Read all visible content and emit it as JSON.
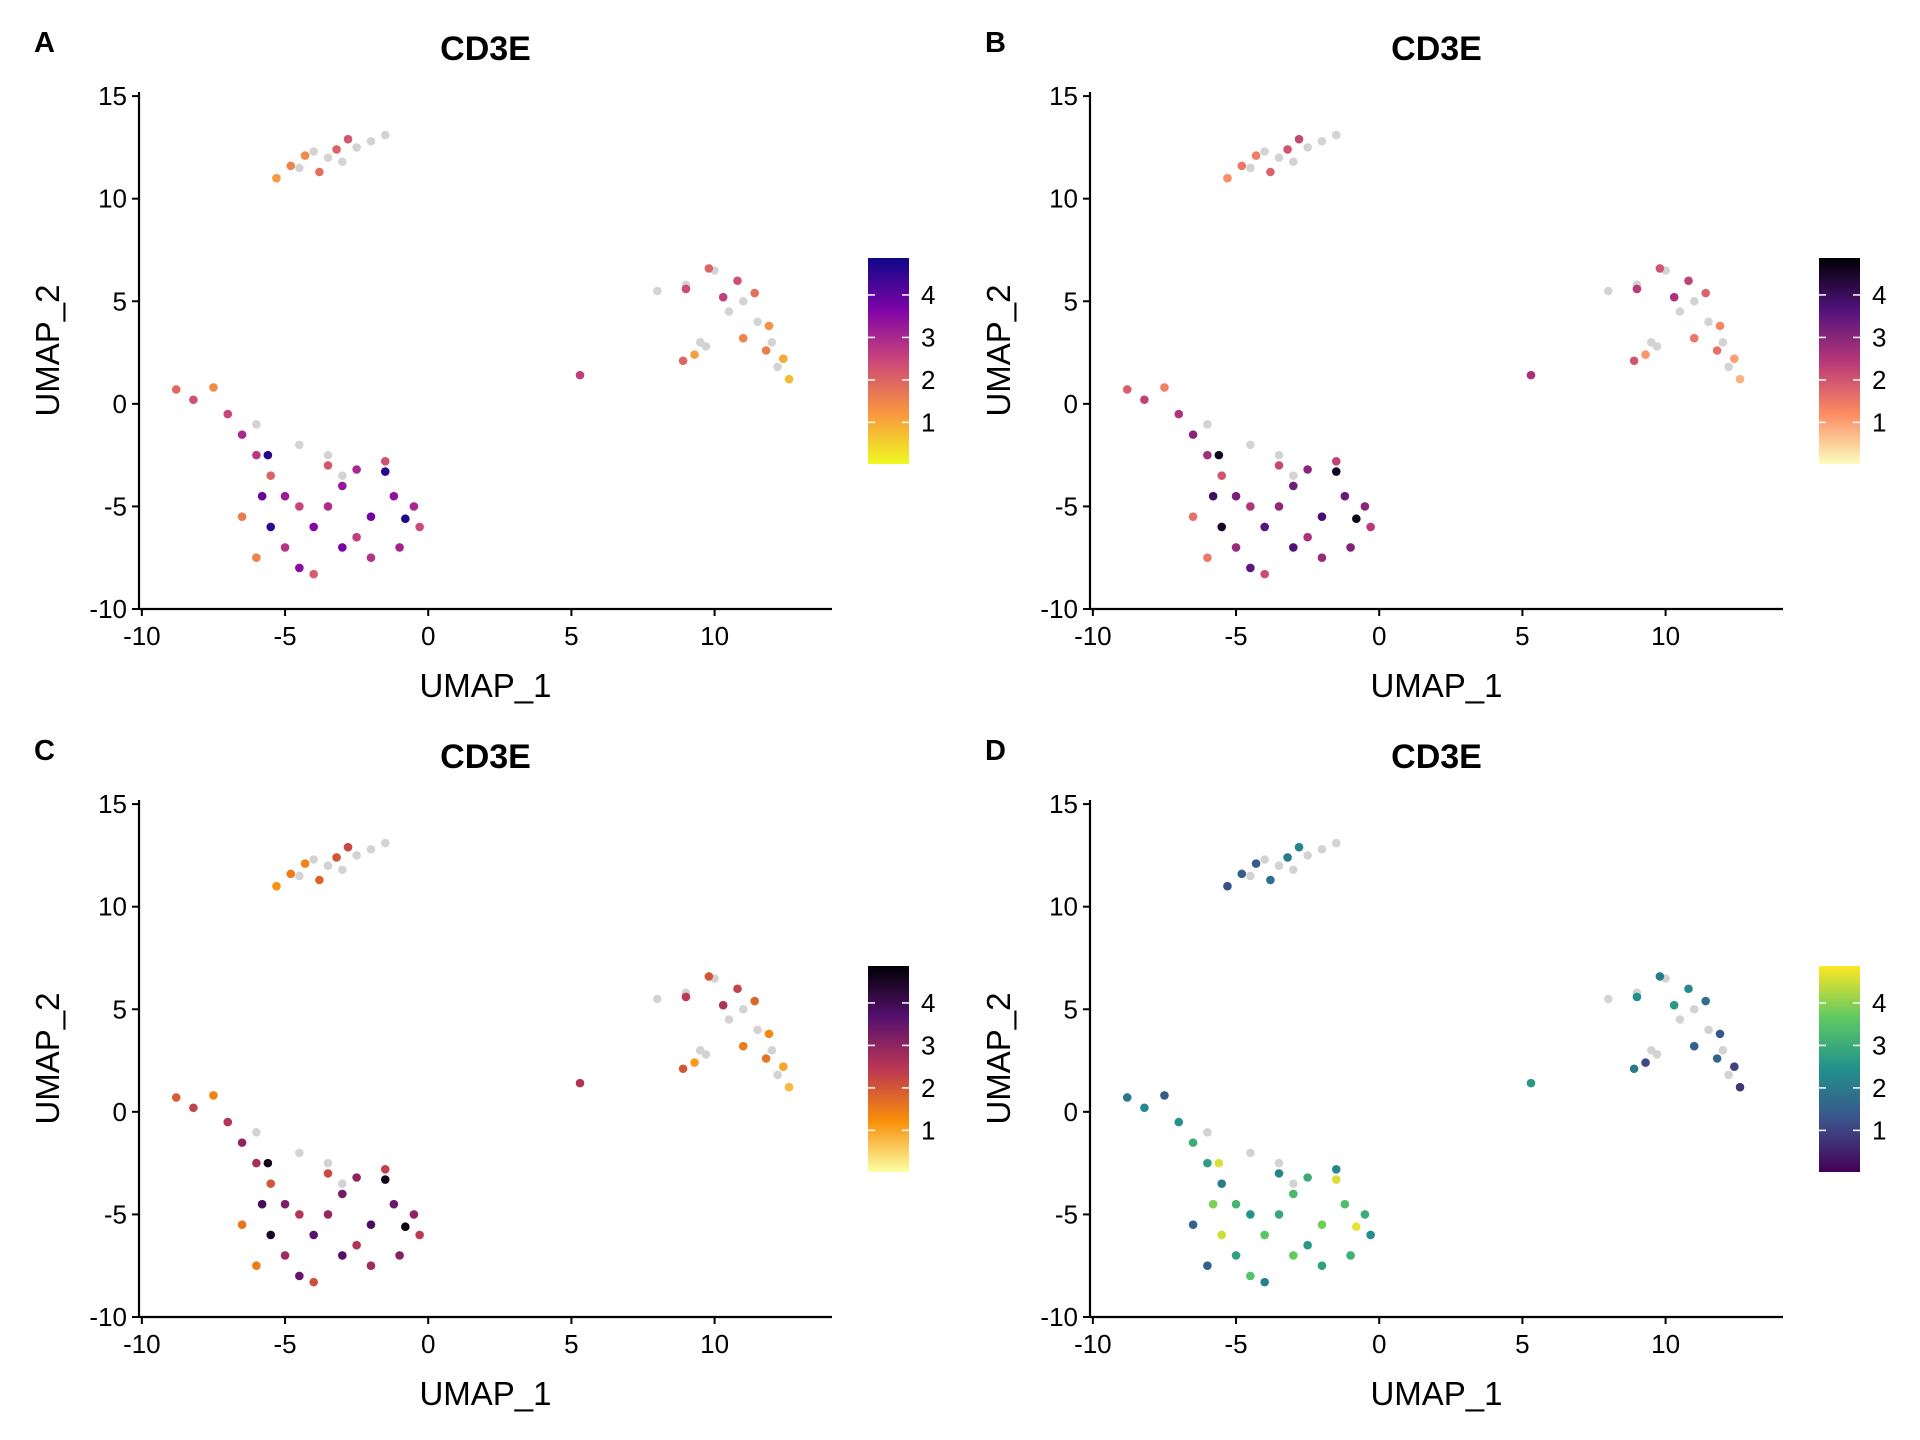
{
  "chart_data": [
    {
      "type": "scatter",
      "panel": "A",
      "title": "CD3E",
      "xlabel": "UMAP_1",
      "ylabel": "UMAP_2",
      "x": [
        -4.5,
        -3.5,
        -2.5,
        -1.5,
        -3,
        -4,
        -2,
        -5.3,
        -4.8,
        -3.8,
        -3.2,
        -4.3,
        -2.8,
        8,
        9,
        10,
        11,
        11.5,
        12,
        10.5,
        12.2,
        9.5,
        9.8,
        10.8,
        11.4,
        11.9,
        12.4,
        12.6,
        11,
        10.3,
        9,
        11.8,
        8.9,
        9.3,
        9.7,
        5.3,
        -4.5,
        -3.5,
        -6,
        -3,
        -8.8,
        -8.2,
        -7.5,
        -7,
        -6.5,
        -6,
        -5.6,
        -5.5,
        -5,
        -5.5,
        -6,
        -5,
        -4.5,
        -4,
        -4,
        -3.5,
        -3,
        -2.5,
        -2,
        -1.5,
        -1.2,
        -0.8,
        -0.5,
        -0.3,
        -1,
        -2,
        -3,
        -3.5,
        -2.5,
        -4.5,
        -6.5,
        -5.8,
        -1.5
      ],
      "y": [
        11.5,
        12,
        12.5,
        13.1,
        11.8,
        12.3,
        12.8,
        11,
        11.6,
        11.3,
        12.4,
        12.1,
        12.9,
        5.5,
        5.8,
        6.5,
        5,
        4,
        3,
        4.5,
        1.8,
        3,
        6.6,
        6,
        5.4,
        3.8,
        2.2,
        1.2,
        3.2,
        5.2,
        5.6,
        2.6,
        2.1,
        2.4,
        2.8,
        1.4,
        -2,
        -2.5,
        -1,
        -3.5,
        0.7,
        0.2,
        0.8,
        -0.5,
        -1.5,
        -2.5,
        -2.5,
        -3.5,
        -4.5,
        -6,
        -7.5,
        -7,
        -8,
        -8.3,
        -6,
        -5,
        -4,
        -6.5,
        -5.5,
        -3.3,
        -4.5,
        -5.6,
        -5,
        -6,
        -7,
        -7.5,
        -7,
        -3,
        -3.2,
        -5,
        -5.5,
        -4.5,
        -2.8
      ],
      "values": [
        0,
        0,
        0,
        0,
        0,
        0,
        0,
        1.2,
        1.5,
        1.8,
        2,
        1.4,
        2.2,
        0,
        0,
        0,
        0,
        0,
        0,
        0,
        0,
        0,
        2,
        2.3,
        1.8,
        1.3,
        1,
        0.8,
        1.5,
        2.6,
        2.4,
        1.6,
        2,
        1.1,
        0,
        2.6,
        0,
        0,
        0,
        0,
        1.9,
        2.3,
        1.4,
        2.5,
        3,
        2.7,
        4.6,
        2,
        3.2,
        4.5,
        1.5,
        2.8,
        3.5,
        2.1,
        3.6,
        2.9,
        3.3,
        2.6,
        3.8,
        4.6,
        3.4,
        4.7,
        3,
        2.4,
        3.1,
        2.8,
        3.7,
        2.2,
        3,
        2.5,
        1.6,
        3.9,
        2.3
      ],
      "xlim": [
        -10.1,
        14.1
      ],
      "ylim": [
        -10,
        15.2
      ],
      "xticks": [
        -10,
        -5,
        0,
        5,
        10
      ],
      "yticks": [
        -10,
        -5,
        0,
        5,
        10,
        15
      ],
      "colors": [
        "#f0f921",
        "#f89540",
        "#cc4778",
        "#7e03a8",
        "#0d0887"
      ],
      "zero_color": "#d3d3d3",
      "clim": [
        0.02,
        4.87
      ],
      "cticks": [
        1,
        2,
        3,
        4
      ]
    },
    {
      "type": "scatter",
      "panel": "B",
      "title": "CD3E",
      "xlabel": "UMAP_1",
      "ylabel": "UMAP_2",
      "x": [
        -4.5,
        -3.5,
        -2.5,
        -1.5,
        -3,
        -4,
        -2,
        -5.3,
        -4.8,
        -3.8,
        -3.2,
        -4.3,
        -2.8,
        8,
        9,
        10,
        11,
        11.5,
        12,
        10.5,
        12.2,
        9.5,
        9.8,
        10.8,
        11.4,
        11.9,
        12.4,
        12.6,
        11,
        10.3,
        9,
        11.8,
        8.9,
        9.3,
        9.7,
        5.3,
        -4.5,
        -3.5,
        -6,
        -3,
        -8.8,
        -8.2,
        -7.5,
        -7,
        -6.5,
        -6,
        -5.6,
        -5.5,
        -5,
        -5.5,
        -6,
        -5,
        -4.5,
        -4,
        -4,
        -3.5,
        -3,
        -2.5,
        -2,
        -1.5,
        -1.2,
        -0.8,
        -0.5,
        -0.3,
        -1,
        -2,
        -3,
        -3.5,
        -2.5,
        -4.5,
        -6.5,
        -5.8,
        -1.5
      ],
      "y": [
        11.5,
        12,
        12.5,
        13.1,
        11.8,
        12.3,
        12.8,
        11,
        11.6,
        11.3,
        12.4,
        12.1,
        12.9,
        5.5,
        5.8,
        6.5,
        5,
        4,
        3,
        4.5,
        1.8,
        3,
        6.6,
        6,
        5.4,
        3.8,
        2.2,
        1.2,
        3.2,
        5.2,
        5.6,
        2.6,
        2.1,
        2.4,
        2.8,
        1.4,
        -2,
        -2.5,
        -1,
        -3.5,
        0.7,
        0.2,
        0.8,
        -0.5,
        -1.5,
        -2.5,
        -2.5,
        -3.5,
        -4.5,
        -6,
        -7.5,
        -7,
        -8,
        -8.3,
        -6,
        -5,
        -4,
        -6.5,
        -5.5,
        -3.3,
        -4.5,
        -5.6,
        -5,
        -6,
        -7,
        -7.5,
        -7,
        -3,
        -3.2,
        -5,
        -5.5,
        -4.5,
        -2.8
      ],
      "values": [
        0,
        0,
        0,
        0,
        0,
        0,
        0,
        1.2,
        1.5,
        1.8,
        2,
        1.4,
        2.2,
        0,
        0,
        0,
        0,
        0,
        0,
        0,
        0,
        0,
        2,
        2.3,
        1.8,
        1.3,
        1,
        0.8,
        1.5,
        2.6,
        2.4,
        1.6,
        2,
        1.1,
        0,
        2.6,
        0,
        0,
        0,
        0,
        1.9,
        2.3,
        1.4,
        2.5,
        3,
        2.7,
        4.6,
        2,
        3.2,
        4.5,
        1.5,
        2.8,
        3.5,
        2.1,
        3.6,
        2.9,
        3.3,
        2.6,
        3.8,
        4.6,
        3.4,
        4.7,
        3,
        2.4,
        3.1,
        2.8,
        3.7,
        2.2,
        3,
        2.5,
        1.6,
        3.9,
        2.3
      ],
      "xlim": [
        -10.1,
        14.1
      ],
      "ylim": [
        -10,
        15.2
      ],
      "xticks": [
        -10,
        -5,
        0,
        5,
        10
      ],
      "yticks": [
        -10,
        -5,
        0,
        5,
        10,
        15
      ],
      "colors": [
        "#fcfdbf",
        "#fc8961",
        "#b73779",
        "#51127c",
        "#000004"
      ],
      "zero_color": "#d3d3d3",
      "clim": [
        0.02,
        4.87
      ],
      "cticks": [
        1,
        2,
        3,
        4
      ]
    },
    {
      "type": "scatter",
      "panel": "C",
      "title": "CD3E",
      "xlabel": "UMAP_1",
      "ylabel": "UMAP_2",
      "x": [
        -4.5,
        -3.5,
        -2.5,
        -1.5,
        -3,
        -4,
        -2,
        -5.3,
        -4.8,
        -3.8,
        -3.2,
        -4.3,
        -2.8,
        8,
        9,
        10,
        11,
        11.5,
        12,
        10.5,
        12.2,
        9.5,
        9.8,
        10.8,
        11.4,
        11.9,
        12.4,
        12.6,
        11,
        10.3,
        9,
        11.8,
        8.9,
        9.3,
        9.7,
        5.3,
        -4.5,
        -3.5,
        -6,
        -3,
        -8.8,
        -8.2,
        -7.5,
        -7,
        -6.5,
        -6,
        -5.6,
        -5.5,
        -5,
        -5.5,
        -6,
        -5,
        -4.5,
        -4,
        -4,
        -3.5,
        -3,
        -2.5,
        -2,
        -1.5,
        -1.2,
        -0.8,
        -0.5,
        -0.3,
        -1,
        -2,
        -3,
        -3.5,
        -2.5,
        -4.5,
        -6.5,
        -5.8,
        -1.5
      ],
      "y": [
        11.5,
        12,
        12.5,
        13.1,
        11.8,
        12.3,
        12.8,
        11,
        11.6,
        11.3,
        12.4,
        12.1,
        12.9,
        5.5,
        5.8,
        6.5,
        5,
        4,
        3,
        4.5,
        1.8,
        3,
        6.6,
        6,
        5.4,
        3.8,
        2.2,
        1.2,
        3.2,
        5.2,
        5.6,
        2.6,
        2.1,
        2.4,
        2.8,
        1.4,
        -2,
        -2.5,
        -1,
        -3.5,
        0.7,
        0.2,
        0.8,
        -0.5,
        -1.5,
        -2.5,
        -2.5,
        -3.5,
        -4.5,
        -6,
        -7.5,
        -7,
        -8,
        -8.3,
        -6,
        -5,
        -4,
        -6.5,
        -5.5,
        -3.3,
        -4.5,
        -5.6,
        -5,
        -6,
        -7,
        -7.5,
        -7,
        -3,
        -3.2,
        -5,
        -5.5,
        -4.5,
        -2.8
      ],
      "values": [
        0,
        0,
        0,
        0,
        0,
        0,
        0,
        1.2,
        1.5,
        1.8,
        2,
        1.4,
        2.2,
        0,
        0,
        0,
        0,
        0,
        0,
        0,
        0,
        0,
        2,
        2.3,
        1.8,
        1.3,
        1,
        0.8,
        1.5,
        2.6,
        2.4,
        1.6,
        2,
        1.1,
        0,
        2.6,
        0,
        0,
        0,
        0,
        1.9,
        2.3,
        1.4,
        2.5,
        3,
        2.7,
        4.6,
        2,
        3.2,
        4.5,
        1.5,
        2.8,
        3.5,
        2.1,
        3.6,
        2.9,
        3.3,
        2.6,
        3.8,
        4.6,
        3.4,
        4.7,
        3,
        2.4,
        3.1,
        2.8,
        3.7,
        2.2,
        3,
        2.5,
        1.6,
        3.9,
        2.3
      ],
      "xlim": [
        -10.1,
        14.1
      ],
      "ylim": [
        -10,
        15.2
      ],
      "xticks": [
        -10,
        -5,
        0,
        5,
        10
      ],
      "yticks": [
        -10,
        -5,
        0,
        5,
        10,
        15
      ],
      "colors": [
        "#fcffa4",
        "#f98e09",
        "#bc3754",
        "#57106e",
        "#000004"
      ],
      "zero_color": "#d3d3d3",
      "clim": [
        0.02,
        4.87
      ],
      "cticks": [
        1,
        2,
        3,
        4
      ]
    },
    {
      "type": "scatter",
      "panel": "D",
      "title": "CD3E",
      "xlabel": "UMAP_1",
      "ylabel": "UMAP_2",
      "x": [
        -4.5,
        -3.5,
        -2.5,
        -1.5,
        -3,
        -4,
        -2,
        -5.3,
        -4.8,
        -3.8,
        -3.2,
        -4.3,
        -2.8,
        8,
        9,
        10,
        11,
        11.5,
        12,
        10.5,
        12.2,
        9.5,
        9.8,
        10.8,
        11.4,
        11.9,
        12.4,
        12.6,
        11,
        10.3,
        9,
        11.8,
        8.9,
        9.3,
        9.7,
        5.3,
        -4.5,
        -3.5,
        -6,
        -3,
        -8.8,
        -8.2,
        -7.5,
        -7,
        -6.5,
        -6,
        -5.6,
        -5.5,
        -5,
        -5.5,
        -6,
        -5,
        -4.5,
        -4,
        -4,
        -3.5,
        -3,
        -2.5,
        -2,
        -1.5,
        -1.2,
        -0.8,
        -0.5,
        -0.3,
        -1,
        -2,
        -3,
        -3.5,
        -2.5,
        -4.5,
        -6.5,
        -5.8,
        -1.5
      ],
      "y": [
        11.5,
        12,
        12.5,
        13.1,
        11.8,
        12.3,
        12.8,
        11,
        11.6,
        11.3,
        12.4,
        12.1,
        12.9,
        5.5,
        5.8,
        6.5,
        5,
        4,
        3,
        4.5,
        1.8,
        3,
        6.6,
        6,
        5.4,
        3.8,
        2.2,
        1.2,
        3.2,
        5.2,
        5.6,
        2.6,
        2.1,
        2.4,
        2.8,
        1.4,
        -2,
        -2.5,
        -1,
        -3.5,
        0.7,
        0.2,
        0.8,
        -0.5,
        -1.5,
        -2.5,
        -2.5,
        -3.5,
        -4.5,
        -6,
        -7.5,
        -7,
        -8,
        -8.3,
        -6,
        -5,
        -4,
        -6.5,
        -5.5,
        -3.3,
        -4.5,
        -5.6,
        -5,
        -6,
        -7,
        -7.5,
        -7,
        -3,
        -3.2,
        -5,
        -5.5,
        -4.5,
        -2.8
      ],
      "values": [
        0,
        0,
        0,
        0,
        0,
        0,
        0,
        1.2,
        1.5,
        1.8,
        2,
        1.4,
        2.2,
        0,
        0,
        0,
        0,
        0,
        0,
        0,
        0,
        0,
        2,
        2.3,
        1.8,
        1.3,
        1,
        0.8,
        1.5,
        2.6,
        2.4,
        1.6,
        2,
        1.1,
        0,
        2.6,
        0,
        0,
        0,
        0,
        1.9,
        2.3,
        1.4,
        2.5,
        3,
        2.7,
        4.6,
        2,
        3.2,
        4.5,
        1.5,
        2.8,
        3.5,
        2.1,
        3.6,
        2.9,
        3.3,
        2.6,
        3.8,
        4.6,
        3.4,
        4.7,
        3,
        2.4,
        3.1,
        2.8,
        3.7,
        2.2,
        3,
        2.5,
        1.6,
        3.9,
        2.3
      ],
      "xlim": [
        -10.1,
        14.1
      ],
      "ylim": [
        -10,
        15.2
      ],
      "xticks": [
        -10,
        -5,
        0,
        5,
        10
      ],
      "yticks": [
        -10,
        -5,
        0,
        5,
        10,
        15
      ],
      "colors": [
        "#440154",
        "#3b528b",
        "#21918c",
        "#5ec962",
        "#fde725"
      ],
      "zero_color": "#d3d3d3",
      "clim": [
        0.02,
        4.87
      ],
      "cticks": [
        1,
        2,
        3,
        4
      ]
    }
  ]
}
